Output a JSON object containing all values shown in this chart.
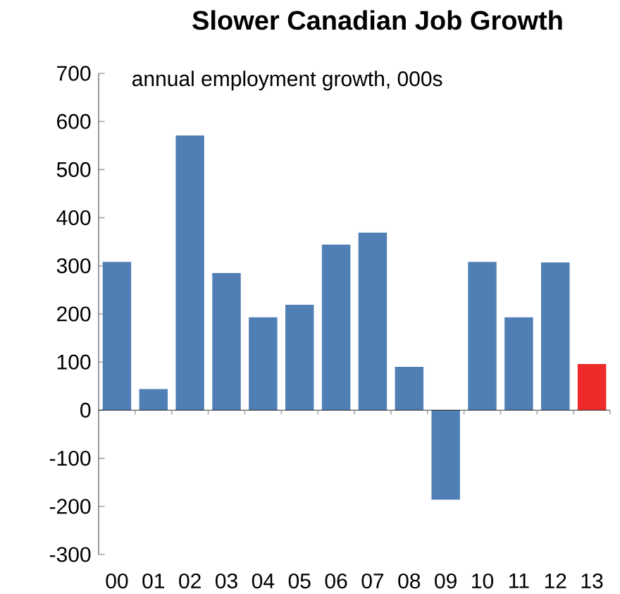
{
  "chart_data": {
    "type": "bar",
    "title": "Slower Canadian Job Growth",
    "annotations": [
      "annual employment growth, 000s"
    ],
    "categories": [
      "00",
      "01",
      "02",
      "03",
      "04",
      "05",
      "06",
      "07",
      "08",
      "09",
      "10",
      "11",
      "12",
      "13"
    ],
    "values": [
      308,
      44,
      571,
      285,
      193,
      219,
      344,
      369,
      90,
      -186,
      308,
      193,
      307,
      96
    ],
    "colors": [
      "#507fb5",
      "#507fb5",
      "#507fb5",
      "#507fb5",
      "#507fb5",
      "#507fb5",
      "#507fb5",
      "#507fb5",
      "#507fb5",
      "#507fb5",
      "#507fb5",
      "#507fb5",
      "#507fb5",
      "#ee2a2a"
    ],
    "ylim": [
      -300,
      700
    ],
    "yticks": [
      -300,
      -200,
      -100,
      0,
      100,
      200,
      300,
      400,
      500,
      600,
      700
    ]
  }
}
